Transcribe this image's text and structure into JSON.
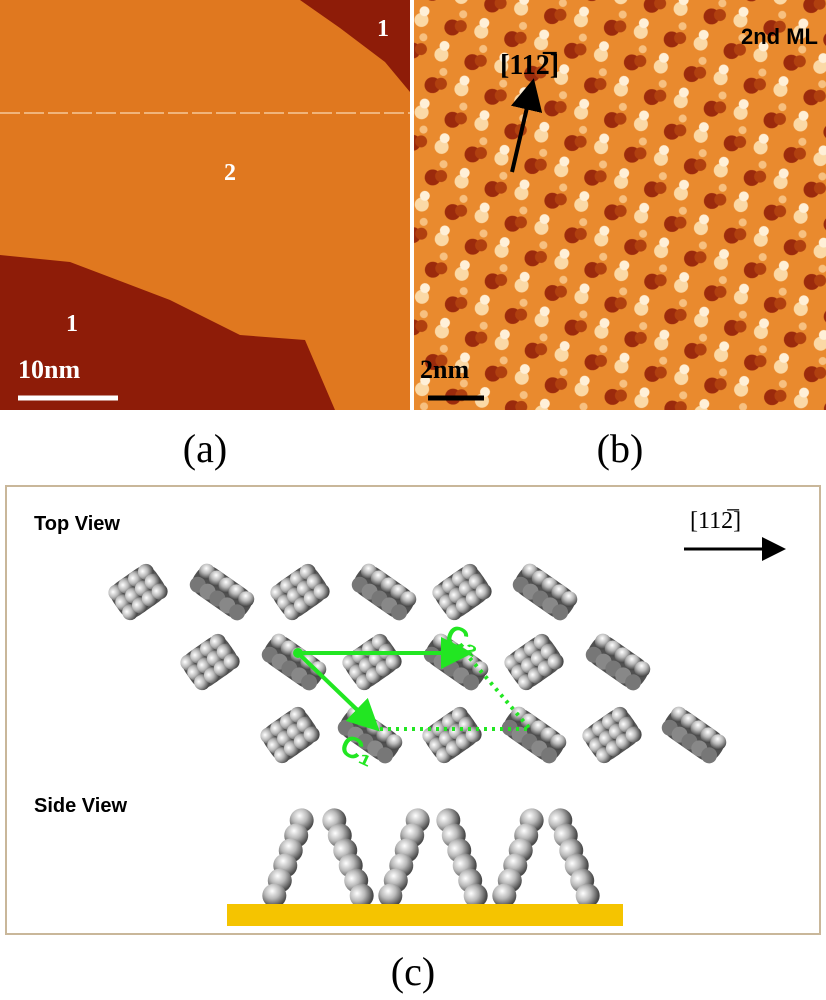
{
  "panel_a": {
    "labels": [
      "1",
      "2",
      "1"
    ],
    "scale_bar": "10nm",
    "caption": "(a)"
  },
  "panel_b": {
    "direction": "[112̅]",
    "layer": "2nd ML",
    "scale_bar": "2nm",
    "caption": "(b)"
  },
  "panel_c": {
    "top_view": "Top View",
    "direction": "[112̅]",
    "vector_2": "C₂",
    "vector_1": "C₁",
    "side_view": "Side View",
    "caption": "(c)"
  }
}
